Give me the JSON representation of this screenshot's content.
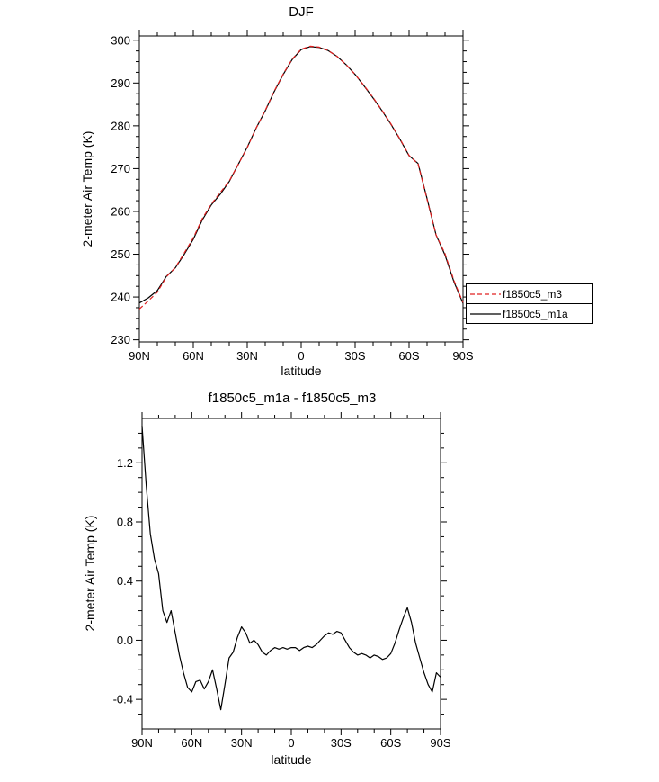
{
  "page": {
    "background": "#ffffff",
    "text_color": "#000000"
  },
  "legend": {
    "position": "outside-right-of-top-chart",
    "entries": [
      {
        "label": "f1850c5_m3",
        "color": "#e02020",
        "style": "dashed"
      },
      {
        "label": "f1850c5_m1a",
        "color": "#000000",
        "style": "solid"
      }
    ]
  },
  "chart_data": [
    {
      "type": "line",
      "title": "DJF",
      "xlabel": "latitude",
      "ylabel": "2-meter Air Temp (K)",
      "xlim": [
        90,
        -90
      ],
      "ylim": [
        229.5,
        301
      ],
      "grid": false,
      "legend_position": "outside-right",
      "xticks": {
        "values": [
          90,
          60,
          30,
          0,
          -30,
          -60,
          -90
        ],
        "labels": [
          "90N",
          "60N",
          "30N",
          "0",
          "30S",
          "60S",
          "90S"
        ],
        "minor_step": 10
      },
      "yticks": {
        "values": [
          230,
          240,
          250,
          260,
          270,
          280,
          290,
          300
        ],
        "labels": [
          "230",
          "240",
          "250",
          "260",
          "270",
          "280",
          "290",
          "300"
        ],
        "minor_step": 2.5
      },
      "x": [
        90,
        85,
        80,
        75,
        70,
        65,
        60,
        55,
        50,
        45,
        40,
        35,
        30,
        25,
        20,
        15,
        10,
        5,
        0,
        -5,
        -10,
        -15,
        -20,
        -25,
        -30,
        -35,
        -40,
        -45,
        -50,
        -55,
        -60,
        -65,
        -70,
        -75,
        -80,
        -85,
        -90
      ],
      "series": [
        {
          "name": "f1850c5_m1a",
          "color": "#000000",
          "dash": "solid",
          "values": [
            238.6,
            239.8,
            241.5,
            244.8,
            246.8,
            250.0,
            253.5,
            258.0,
            261.5,
            264.0,
            267.0,
            271.0,
            275.0,
            279.5,
            283.5,
            288.0,
            292.0,
            295.5,
            297.8,
            298.5,
            298.3,
            297.6,
            296.2,
            294.3,
            292.0,
            289.3,
            286.5,
            283.5,
            280.3,
            276.8,
            273.0,
            271.2,
            263.0,
            254.5,
            249.8,
            243.5,
            238.5
          ]
        },
        {
          "name": "f1850c5_m3",
          "color": "#e02020",
          "dash": "dashed",
          "values": [
            237.2,
            239.1,
            241.1,
            244.7,
            246.9,
            250.3,
            253.8,
            258.3,
            261.7,
            264.4,
            267.1,
            271.0,
            274.9,
            279.5,
            283.6,
            288.1,
            292.1,
            295.6,
            297.9,
            298.6,
            298.4,
            297.6,
            296.2,
            294.3,
            292.0,
            289.4,
            286.6,
            283.6,
            280.4,
            276.9,
            273.1,
            271.1,
            262.8,
            254.5,
            250.1,
            243.8,
            238.7
          ]
        }
      ]
    },
    {
      "type": "line",
      "title": "f1850c5_m1a - f1850c5_m3",
      "xlabel": "latitude",
      "ylabel": "2-meter Air Temp (K)",
      "xlim": [
        90,
        -90
      ],
      "ylim": [
        -0.6,
        1.5
      ],
      "grid": false,
      "legend_position": "none",
      "xticks": {
        "values": [
          90,
          60,
          30,
          0,
          -30,
          -60,
          -90
        ],
        "labels": [
          "90N",
          "60N",
          "30N",
          "0",
          "30S",
          "60S",
          "90S"
        ],
        "minor_step": 10
      },
      "yticks": {
        "values": [
          -0.4,
          0.0,
          0.4,
          0.8,
          1.2
        ],
        "labels": [
          "-0.4",
          "0.0",
          "0.4",
          "0.8",
          "1.2"
        ],
        "minor_step": 0.1
      },
      "x": [
        90,
        87.5,
        85,
        82.5,
        80,
        77.5,
        75,
        72.5,
        70,
        67.5,
        65,
        62.5,
        60,
        57.5,
        55,
        52.5,
        50,
        47.5,
        45,
        42.5,
        40,
        37.5,
        35,
        32.5,
        30,
        27.5,
        25,
        22.5,
        20,
        17.5,
        15,
        12.5,
        10,
        7.5,
        5,
        2.5,
        0,
        -2.5,
        -5,
        -7.5,
        -10,
        -12.5,
        -15,
        -17.5,
        -20,
        -22.5,
        -25,
        -27.5,
        -30,
        -32.5,
        -35,
        -37.5,
        -40,
        -42.5,
        -45,
        -47.5,
        -50,
        -52.5,
        -55,
        -57.5,
        -60,
        -62.5,
        -65,
        -67.5,
        -70,
        -72.5,
        -75,
        -77.5,
        -80,
        -82.5,
        -85,
        -87.5,
        -90
      ],
      "series": [
        {
          "name": "f1850c5_m1a - f1850c5_m3",
          "color": "#000000",
          "dash": "solid",
          "values": [
            1.45,
            1.05,
            0.72,
            0.55,
            0.45,
            0.2,
            0.12,
            0.2,
            0.05,
            -0.1,
            -0.22,
            -0.32,
            -0.35,
            -0.28,
            -0.27,
            -0.33,
            -0.28,
            -0.2,
            -0.33,
            -0.47,
            -0.3,
            -0.12,
            -0.08,
            0.02,
            0.09,
            0.05,
            -0.02,
            0.0,
            -0.03,
            -0.08,
            -0.1,
            -0.07,
            -0.05,
            -0.06,
            -0.05,
            -0.06,
            -0.05,
            -0.05,
            -0.07,
            -0.05,
            -0.04,
            -0.05,
            -0.03,
            0.0,
            0.03,
            0.05,
            0.04,
            0.06,
            0.05,
            0.0,
            -0.05,
            -0.08,
            -0.1,
            -0.09,
            -0.1,
            -0.12,
            -0.1,
            -0.11,
            -0.13,
            -0.12,
            -0.09,
            -0.02,
            0.07,
            0.15,
            0.22,
            0.12,
            -0.02,
            -0.12,
            -0.22,
            -0.3,
            -0.35,
            -0.22,
            -0.25
          ]
        }
      ]
    }
  ]
}
